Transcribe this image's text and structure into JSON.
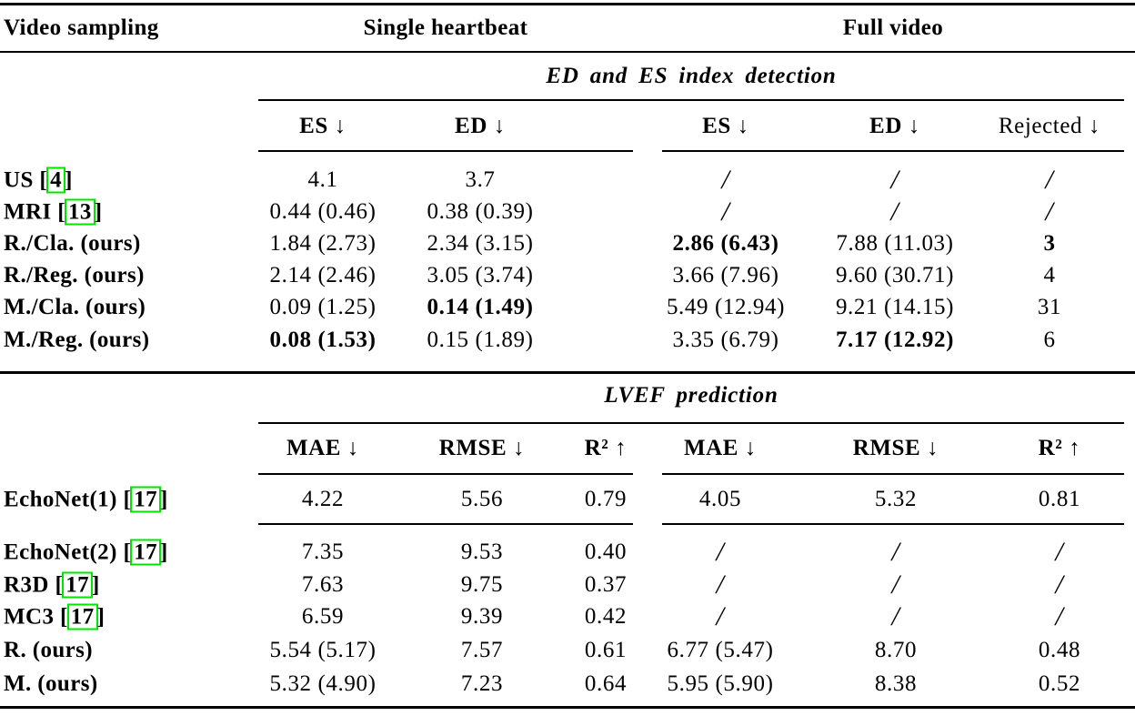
{
  "page": {
    "background": "#ffffff",
    "text_color": "#000000",
    "citation_box_color": "#00e400"
  },
  "header": {
    "col1": "Video sampling",
    "group1": "Single heartbeat",
    "group2": "Full video"
  },
  "citation": {
    "open": "[",
    "close": "]"
  },
  "section1": {
    "title": "ED and ES index detection",
    "columns": [
      {
        "t": "ES ↓",
        "b": true
      },
      {
        "t": "ED ↓",
        "b": true
      },
      {
        "t": "ES ↓",
        "b": true
      },
      {
        "t": "ED ↓",
        "b": true
      },
      {
        "t": "Rejected ↓",
        "b": false
      }
    ],
    "rows": [
      {
        "label": "US",
        "cite": "4",
        "cells": [
          "4.1",
          "3.7",
          "/",
          "/",
          "/"
        ]
      },
      {
        "label": "MRI",
        "cite": "13",
        "cells": [
          "0.44 (0.46)",
          "0.38 (0.39)",
          "/",
          "/",
          "/"
        ]
      },
      {
        "label": "R./Cla. (ours)",
        "cite": null,
        "cells": [
          "1.84 (2.73)",
          "2.34 (3.15)",
          {
            "t": "2.86 (6.43)",
            "b": true
          },
          "7.88 (11.03)",
          {
            "t": "3",
            "b": true
          }
        ]
      },
      {
        "label": "R./Reg. (ours)",
        "cite": null,
        "cells": [
          "2.14 (2.46)",
          "3.05 (3.74)",
          "3.66 (7.96)",
          "9.60 (30.71)",
          "4"
        ]
      },
      {
        "label": "M./Cla. (ours)",
        "cite": null,
        "cells": [
          "0.09 (1.25)",
          {
            "t": "0.14 (1.49)",
            "b": true
          },
          "5.49 (12.94)",
          "9.21 (14.15)",
          "31"
        ]
      },
      {
        "label": "M./Reg. (ours)",
        "cite": null,
        "cells": [
          {
            "t": "0.08 (1.53)",
            "b": true
          },
          "0.15 (1.89)",
          "3.35 (6.79)",
          {
            "t": "7.17 (12.92)",
            "b": true
          },
          "6"
        ]
      }
    ]
  },
  "section2": {
    "title": "LVEF prediction",
    "columns": [
      {
        "t": "MAE ↓",
        "b": true
      },
      {
        "t": "RMSE ↓",
        "b": true
      },
      {
        "t": "R² ↑",
        "b": true
      },
      {
        "t": "MAE ↓",
        "b": true
      },
      {
        "t": "RMSE ↓",
        "b": true
      },
      {
        "t": "R² ↑",
        "b": true
      }
    ],
    "rows": [
      {
        "label": "EchoNet(1)",
        "cite": "17",
        "cells": [
          "4.22",
          "5.56",
          "0.79",
          "4.05",
          "5.32",
          "0.81"
        ]
      },
      {
        "label": "EchoNet(2)",
        "cite": "17",
        "cells": [
          "7.35",
          "9.53",
          "0.40",
          "/",
          "/",
          "/"
        ]
      },
      {
        "label": "R3D",
        "cite": "17",
        "cells": [
          "7.63",
          "9.75",
          "0.37",
          "/",
          "/",
          "/"
        ]
      },
      {
        "label": "MC3",
        "cite": "17",
        "cells": [
          "6.59",
          "9.39",
          "0.42",
          "/",
          "/",
          "/"
        ]
      },
      {
        "label": "R. (ours)",
        "cite": null,
        "cells": [
          "5.54 (5.17)",
          "7.57",
          "0.61",
          "6.77 (5.47)",
          "8.70",
          "0.48"
        ]
      },
      {
        "label": "M. (ours)",
        "cite": null,
        "cells": [
          "5.32 (4.90)",
          "7.23",
          "0.64",
          "5.95 (5.90)",
          "8.38",
          "0.52"
        ]
      }
    ]
  }
}
